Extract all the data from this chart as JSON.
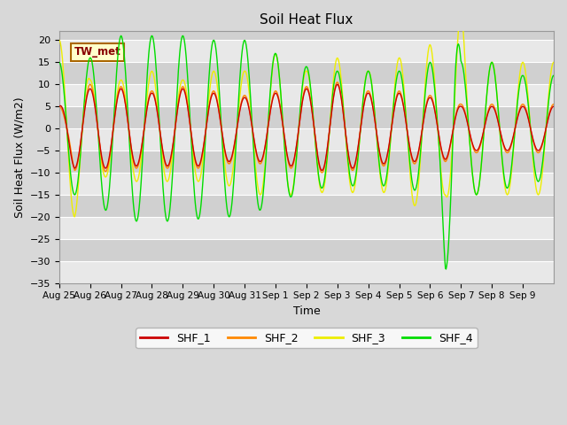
{
  "title": "Soil Heat Flux",
  "xlabel": "Time",
  "ylabel": "Soil Heat Flux (W/m2)",
  "ylim": [
    -35,
    22
  ],
  "yticks": [
    -35,
    -30,
    -25,
    -20,
    -15,
    -10,
    -5,
    0,
    5,
    10,
    15,
    20
  ],
  "annotation": "TW_met",
  "fig_bg_color": "#d8d8d8",
  "plot_bg_color": "#e8e8e8",
  "light_band_color": "#e8e8e8",
  "dark_band_color": "#d0d0d0",
  "grid_color": "#ffffff",
  "colors": {
    "SHF_1": "#cc0000",
    "SHF_2": "#ff8800",
    "SHF_3": "#eeee00",
    "SHF_4": "#00dd00"
  },
  "xtick_labels": [
    "Aug 25",
    "Aug 26",
    "Aug 27",
    "Aug 28",
    "Aug 29",
    "Aug 30",
    "Aug 31",
    "Sep 1",
    "Sep 2",
    "Sep 3",
    "Sep 4",
    "Sep 5",
    "Sep 6",
    "Sep 7",
    "Sep 8",
    "Sep 9"
  ],
  "n_days": 16,
  "band_edges": [
    -35,
    -30,
    -25,
    -20,
    -15,
    -10,
    -5,
    0,
    5,
    10,
    15,
    20,
    22
  ]
}
